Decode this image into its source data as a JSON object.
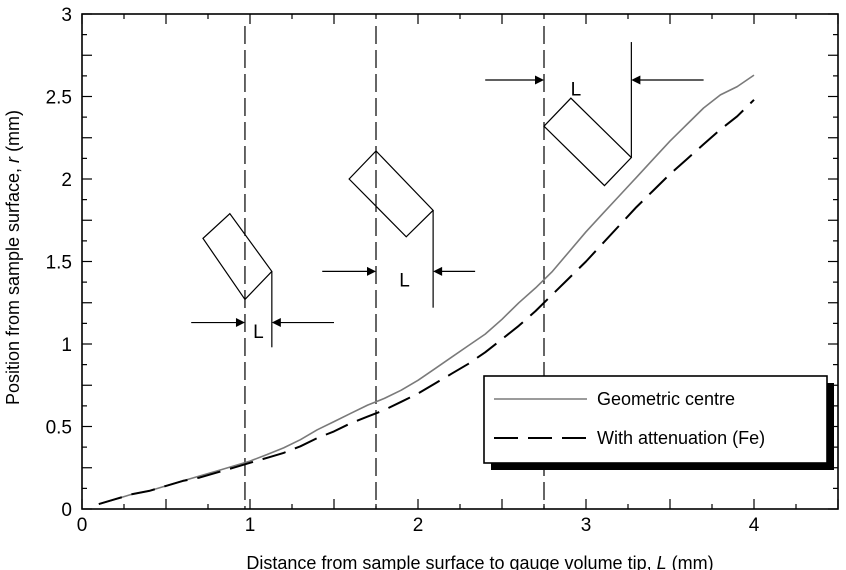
{
  "chart_data": {
    "type": "line",
    "xlabel_prefix": "Distance from sample surface to gauge volume tip, ",
    "xlabel_var": "L",
    "xlabel_suffix": " (mm)",
    "ylabel_prefix": "Position from sample surface, ",
    "ylabel_var": "r",
    "ylabel_suffix": " (mm)",
    "xlim": [
      0,
      4.5
    ],
    "ylim": [
      0,
      3
    ],
    "xticks": [
      0,
      1,
      2,
      3,
      4
    ],
    "xtick_labels": [
      "0",
      "1",
      "2",
      "3",
      "4"
    ],
    "yticks": [
      0,
      0.5,
      1,
      1.5,
      2,
      2.5,
      3
    ],
    "ytick_labels": [
      "0",
      "0.5",
      "1",
      "1.5",
      "2",
      "2.5",
      "3"
    ],
    "grid": false,
    "legend_position": "bottom-right",
    "series": [
      {
        "name": "Geometric centre",
        "style": "solid",
        "color": "#7a7a7a",
        "x": [
          0.1,
          0.2,
          0.3,
          0.4,
          0.5,
          0.6,
          0.7,
          0.8,
          0.9,
          1.0,
          1.1,
          1.2,
          1.3,
          1.4,
          1.5,
          1.6,
          1.7,
          1.8,
          1.9,
          2.0,
          2.1,
          2.2,
          2.3,
          2.4,
          2.5,
          2.6,
          2.7,
          2.8,
          2.9,
          3.0,
          3.1,
          3.2,
          3.3,
          3.4,
          3.5,
          3.6,
          3.7,
          3.8,
          3.9,
          4.0
        ],
        "y": [
          0.03,
          0.06,
          0.09,
          0.11,
          0.14,
          0.17,
          0.2,
          0.23,
          0.26,
          0.29,
          0.33,
          0.37,
          0.42,
          0.48,
          0.53,
          0.58,
          0.63,
          0.67,
          0.72,
          0.78,
          0.85,
          0.92,
          0.99,
          1.06,
          1.15,
          1.25,
          1.34,
          1.44,
          1.56,
          1.68,
          1.79,
          1.9,
          2.01,
          2.12,
          2.23,
          2.33,
          2.43,
          2.51,
          2.56,
          2.63
        ]
      },
      {
        "name": "With attenuation (Fe)",
        "style": "long-dash",
        "color": "#000000",
        "x": [
          0.1,
          0.2,
          0.3,
          0.4,
          0.5,
          0.6,
          0.7,
          0.8,
          0.9,
          1.0,
          1.1,
          1.2,
          1.3,
          1.4,
          1.5,
          1.6,
          1.7,
          1.8,
          1.9,
          2.0,
          2.1,
          2.2,
          2.3,
          2.4,
          2.5,
          2.6,
          2.7,
          2.8,
          2.9,
          3.0,
          3.1,
          3.2,
          3.3,
          3.4,
          3.5,
          3.6,
          3.7,
          3.8,
          3.9,
          4.0
        ],
        "y": [
          0.03,
          0.06,
          0.09,
          0.11,
          0.14,
          0.17,
          0.19,
          0.22,
          0.25,
          0.28,
          0.31,
          0.34,
          0.38,
          0.43,
          0.47,
          0.52,
          0.56,
          0.6,
          0.65,
          0.7,
          0.76,
          0.82,
          0.88,
          0.95,
          1.03,
          1.11,
          1.2,
          1.3,
          1.4,
          1.5,
          1.61,
          1.72,
          1.83,
          1.93,
          2.03,
          2.12,
          2.21,
          2.3,
          2.38,
          2.48
        ]
      }
    ],
    "annotations": [
      {
        "label": "L",
        "dashed_x": 0.97,
        "rect": [
          [
            0.97,
            1.27
          ],
          [
            1.13,
            1.44
          ],
          [
            0.88,
            1.79
          ],
          [
            0.72,
            1.64
          ]
        ],
        "probe_line": {
          "x": 1.13,
          "y_top": 1.44,
          "y_bottom": 0.98
        },
        "arrow_left": {
          "from": 0.65,
          "to": 0.97,
          "y": 1.13
        },
        "arrow_right": {
          "from": 1.5,
          "to": 1.13,
          "y": 1.13
        },
        "label_pos": [
          1.05,
          1.08
        ]
      },
      {
        "label": "L",
        "dashed_x": 1.75,
        "rect": [
          [
            1.75,
            2.17
          ],
          [
            2.09,
            1.81
          ],
          [
            1.93,
            1.65
          ],
          [
            1.59,
            2.0
          ]
        ],
        "probe_line": {
          "x": 2.09,
          "y_top": 1.81,
          "y_bottom": 1.22
        },
        "arrow_left": {
          "from": 1.43,
          "to": 1.75,
          "y": 1.44
        },
        "arrow_right": {
          "from": 2.34,
          "to": 2.09,
          "y": 1.44
        },
        "label_pos": [
          1.92,
          1.39
        ]
      },
      {
        "label": "L",
        "dashed_x": 2.75,
        "rect": [
          [
            2.75,
            2.32
          ],
          [
            2.91,
            2.49
          ],
          [
            3.27,
            2.13
          ],
          [
            3.11,
            1.96
          ]
        ],
        "probe_line": {
          "x": 3.27,
          "y_top": 2.83,
          "y_bottom": 2.13
        },
        "arrow_left": {
          "from": 2.4,
          "to": 2.75,
          "y": 2.6
        },
        "arrow_right": {
          "from": 3.7,
          "to": 3.27,
          "y": 2.6
        },
        "label_pos": [
          2.94,
          2.55
        ]
      }
    ]
  }
}
